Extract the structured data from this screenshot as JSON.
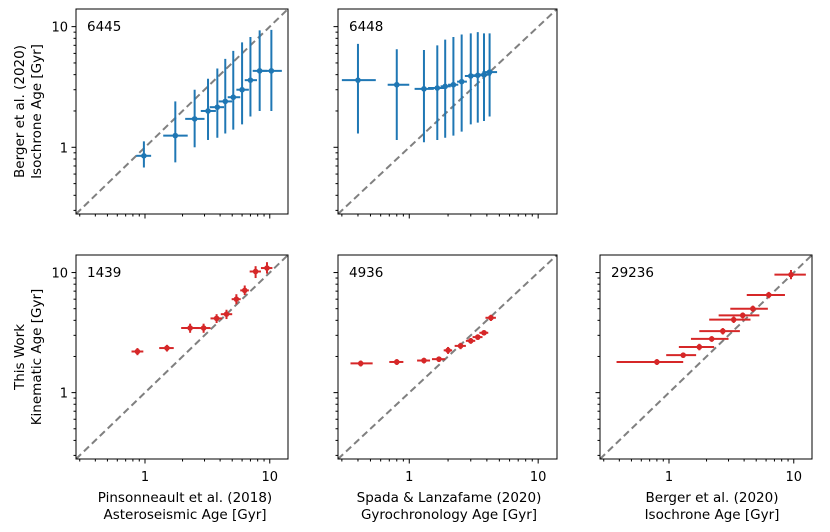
{
  "chart_data": [
    {
      "panel": "top-left",
      "type": "scatter",
      "count_label": "6445",
      "xscale": "log",
      "yscale": "log",
      "xlim": [
        0.28,
        14
      ],
      "ylim": [
        0.28,
        14
      ],
      "xlabel": "",
      "ylabel": [
        "Berger et al. (2020)",
        "Isochrone Age [Gyr]"
      ],
      "xticks": [],
      "yticks": [
        "1",
        "10"
      ],
      "color": "#1f77b4",
      "points": [
        {
          "x": 0.98,
          "xlo": 0.85,
          "xhi": 1.12,
          "y": 0.85,
          "ylo": 0.68,
          "yhi": 1.12
        },
        {
          "x": 1.75,
          "xlo": 1.4,
          "xhi": 2.2,
          "y": 1.25,
          "ylo": 0.75,
          "yhi": 2.4
        },
        {
          "x": 2.5,
          "xlo": 2.1,
          "xhi": 3.0,
          "y": 1.72,
          "ylo": 1.0,
          "yhi": 3.0
        },
        {
          "x": 3.2,
          "xlo": 2.8,
          "xhi": 3.7,
          "y": 2.0,
          "ylo": 1.15,
          "yhi": 3.7
        },
        {
          "x": 3.8,
          "xlo": 3.3,
          "xhi": 4.3,
          "y": 2.15,
          "ylo": 1.2,
          "yhi": 4.5
        },
        {
          "x": 4.4,
          "xlo": 3.9,
          "xhi": 5.0,
          "y": 2.4,
          "ylo": 1.3,
          "yhi": 5.4
        },
        {
          "x": 5.1,
          "xlo": 4.6,
          "xhi": 5.8,
          "y": 2.6,
          "ylo": 1.4,
          "yhi": 6.3
        },
        {
          "x": 6.0,
          "xlo": 5.4,
          "xhi": 6.8,
          "y": 3.0,
          "ylo": 1.55,
          "yhi": 7.4
        },
        {
          "x": 7.0,
          "xlo": 6.3,
          "xhi": 7.9,
          "y": 3.6,
          "ylo": 1.8,
          "yhi": 8.2
        },
        {
          "x": 8.3,
          "xlo": 7.3,
          "xhi": 9.5,
          "y": 4.3,
          "ylo": 2.0,
          "yhi": 9.3
        },
        {
          "x": 10.3,
          "xlo": 8.5,
          "xhi": 12.5,
          "y": 4.3,
          "ylo": 2.0,
          "yhi": 9.4
        }
      ]
    },
    {
      "panel": "top-middle",
      "type": "scatter",
      "count_label": "6448",
      "xscale": "log",
      "yscale": "log",
      "xlim": [
        0.28,
        14
      ],
      "ylim": [
        0.28,
        14
      ],
      "xlabel": "",
      "ylabel": "",
      "xticks": [],
      "yticks": [],
      "color": "#1f77b4",
      "points": [
        {
          "x": 0.4,
          "xlo": 0.3,
          "xhi": 0.55,
          "y": 3.6,
          "ylo": 1.3,
          "yhi": 7.2
        },
        {
          "x": 0.8,
          "xlo": 0.68,
          "xhi": 1.0,
          "y": 3.3,
          "ylo": 1.15,
          "yhi": 6.5
        },
        {
          "x": 1.3,
          "xlo": 1.1,
          "xhi": 1.55,
          "y": 3.05,
          "ylo": 1.1,
          "yhi": 6.4
        },
        {
          "x": 1.65,
          "xlo": 1.4,
          "xhi": 1.9,
          "y": 3.1,
          "ylo": 1.15,
          "yhi": 7.0
        },
        {
          "x": 1.9,
          "xlo": 1.75,
          "xhi": 2.1,
          "y": 3.2,
          "ylo": 1.2,
          "yhi": 7.8
        },
        {
          "x": 2.2,
          "xlo": 2.0,
          "xhi": 2.4,
          "y": 3.3,
          "ylo": 1.25,
          "yhi": 8.2
        },
        {
          "x": 2.55,
          "xlo": 2.35,
          "xhi": 2.8,
          "y": 3.5,
          "ylo": 1.35,
          "yhi": 8.6
        },
        {
          "x": 3.0,
          "xlo": 2.7,
          "xhi": 3.4,
          "y": 3.9,
          "ylo": 1.55,
          "yhi": 8.8
        },
        {
          "x": 3.4,
          "xlo": 3.0,
          "xhi": 3.9,
          "y": 3.95,
          "ylo": 1.6,
          "yhi": 9.0
        },
        {
          "x": 3.8,
          "xlo": 3.4,
          "xhi": 4.3,
          "y": 4.0,
          "ylo": 1.65,
          "yhi": 8.8
        },
        {
          "x": 4.2,
          "xlo": 3.7,
          "xhi": 4.8,
          "y": 4.2,
          "ylo": 1.8,
          "yhi": 8.8
        }
      ]
    },
    {
      "panel": "bottom-left",
      "type": "scatter",
      "count_label": "1439",
      "xscale": "log",
      "yscale": "log",
      "xlim": [
        0.28,
        14
      ],
      "ylim": [
        0.28,
        14
      ],
      "xlabel": [
        "Pinsonneault et al. (2018)",
        "Asteroseismic Age [Gyr]"
      ],
      "ylabel": [
        "This Work",
        "Kinematic Age [Gyr]"
      ],
      "xticks": [
        "1",
        "10"
      ],
      "yticks": [
        "1",
        "10"
      ],
      "color": "#d62728",
      "points": [
        {
          "x": 0.87,
          "xlo": 0.78,
          "xhi": 0.97,
          "y": 2.2,
          "ylo": 2.05,
          "yhi": 2.35
        },
        {
          "x": 1.5,
          "xlo": 1.3,
          "xhi": 1.7,
          "y": 2.35,
          "ylo": 2.2,
          "yhi": 2.5
        },
        {
          "x": 2.3,
          "xlo": 1.95,
          "xhi": 2.7,
          "y": 3.45,
          "ylo": 3.15,
          "yhi": 3.75
        },
        {
          "x": 2.95,
          "xlo": 2.55,
          "xhi": 3.35,
          "y": 3.45,
          "ylo": 3.15,
          "yhi": 3.75
        },
        {
          "x": 3.75,
          "xlo": 3.35,
          "xhi": 4.15,
          "y": 4.15,
          "ylo": 3.8,
          "yhi": 4.5
        },
        {
          "x": 4.5,
          "xlo": 4.05,
          "xhi": 5.0,
          "y": 4.5,
          "ylo": 4.1,
          "yhi": 4.9
        },
        {
          "x": 5.4,
          "xlo": 4.95,
          "xhi": 5.85,
          "y": 6.0,
          "ylo": 5.45,
          "yhi": 6.6
        },
        {
          "x": 6.3,
          "xlo": 5.8,
          "xhi": 6.8,
          "y": 7.1,
          "ylo": 6.5,
          "yhi": 7.8
        },
        {
          "x": 7.7,
          "xlo": 6.9,
          "xhi": 8.5,
          "y": 10.2,
          "ylo": 9.0,
          "yhi": 11.3
        },
        {
          "x": 9.5,
          "xlo": 8.5,
          "xhi": 10.5,
          "y": 10.9,
          "ylo": 9.8,
          "yhi": 12.2
        }
      ]
    },
    {
      "panel": "bottom-middle",
      "type": "scatter",
      "count_label": "4936",
      "xscale": "log",
      "yscale": "log",
      "xlim": [
        0.28,
        14
      ],
      "ylim": [
        0.28,
        14
      ],
      "xlabel": [
        "Spada & Lanzafame (2020)",
        "Gyrochronology Age [Gyr]"
      ],
      "ylabel": "",
      "xticks": [
        "1",
        "10"
      ],
      "yticks": [],
      "color": "#d62728",
      "points": [
        {
          "x": 0.42,
          "xlo": 0.35,
          "xhi": 0.52,
          "y": 1.75,
          "ylo": 1.65,
          "yhi": 1.85
        },
        {
          "x": 0.8,
          "xlo": 0.7,
          "xhi": 0.9,
          "y": 1.8,
          "ylo": 1.7,
          "yhi": 1.9
        },
        {
          "x": 1.3,
          "xlo": 1.15,
          "xhi": 1.45,
          "y": 1.85,
          "ylo": 1.75,
          "yhi": 1.95
        },
        {
          "x": 1.7,
          "xlo": 1.5,
          "xhi": 1.9,
          "y": 1.9,
          "ylo": 1.8,
          "yhi": 2.0
        },
        {
          "x": 2.0,
          "xlo": 1.85,
          "xhi": 2.15,
          "y": 2.25,
          "ylo": 2.1,
          "yhi": 2.4
        },
        {
          "x": 2.5,
          "xlo": 2.25,
          "xhi": 2.75,
          "y": 2.45,
          "ylo": 2.3,
          "yhi": 2.6
        },
        {
          "x": 3.0,
          "xlo": 2.75,
          "xhi": 3.25,
          "y": 2.7,
          "ylo": 2.55,
          "yhi": 2.85
        },
        {
          "x": 3.4,
          "xlo": 3.1,
          "xhi": 3.7,
          "y": 2.9,
          "ylo": 2.75,
          "yhi": 3.05
        },
        {
          "x": 3.8,
          "xlo": 3.5,
          "xhi": 4.1,
          "y": 3.15,
          "ylo": 3.0,
          "yhi": 3.3
        },
        {
          "x": 4.3,
          "xlo": 3.9,
          "xhi": 4.7,
          "y": 4.2,
          "ylo": 3.95,
          "yhi": 4.45
        }
      ]
    },
    {
      "panel": "bottom-right",
      "type": "scatter",
      "count_label": "29236",
      "xscale": "log",
      "yscale": "log",
      "xlim": [
        0.28,
        14
      ],
      "ylim": [
        0.28,
        14
      ],
      "xlabel": [
        "Berger et al. (2020)",
        "Isochrone Age [Gyr]"
      ],
      "ylabel": "",
      "xticks": [
        "1",
        "10"
      ],
      "yticks": [],
      "color": "#d62728",
      "points": [
        {
          "x": 0.8,
          "xlo": 0.38,
          "xhi": 1.3,
          "y": 1.8,
          "ylo": 1.7,
          "yhi": 1.9
        },
        {
          "x": 1.3,
          "xlo": 0.95,
          "xhi": 1.65,
          "y": 2.05,
          "ylo": 1.95,
          "yhi": 2.15
        },
        {
          "x": 1.75,
          "xlo": 1.2,
          "xhi": 2.3,
          "y": 2.4,
          "ylo": 2.25,
          "yhi": 2.55
        },
        {
          "x": 2.2,
          "xlo": 1.5,
          "xhi": 3.0,
          "y": 2.8,
          "ylo": 2.65,
          "yhi": 2.95
        },
        {
          "x": 2.7,
          "xlo": 1.75,
          "xhi": 3.7,
          "y": 3.25,
          "ylo": 3.05,
          "yhi": 3.45
        },
        {
          "x": 3.3,
          "xlo": 2.1,
          "xhi": 4.5,
          "y": 4.05,
          "ylo": 3.8,
          "yhi": 4.3
        },
        {
          "x": 3.9,
          "xlo": 2.5,
          "xhi": 5.3,
          "y": 4.4,
          "ylo": 4.15,
          "yhi": 4.65
        },
        {
          "x": 4.7,
          "xlo": 3.1,
          "xhi": 6.2,
          "y": 5.0,
          "ylo": 4.7,
          "yhi": 5.3
        },
        {
          "x": 6.3,
          "xlo": 4.2,
          "xhi": 8.5,
          "y": 6.5,
          "ylo": 6.1,
          "yhi": 6.9
        },
        {
          "x": 9.5,
          "xlo": 7.0,
          "xhi": 12.5,
          "y": 9.6,
          "ylo": 8.8,
          "yhi": 10.5
        }
      ]
    }
  ]
}
